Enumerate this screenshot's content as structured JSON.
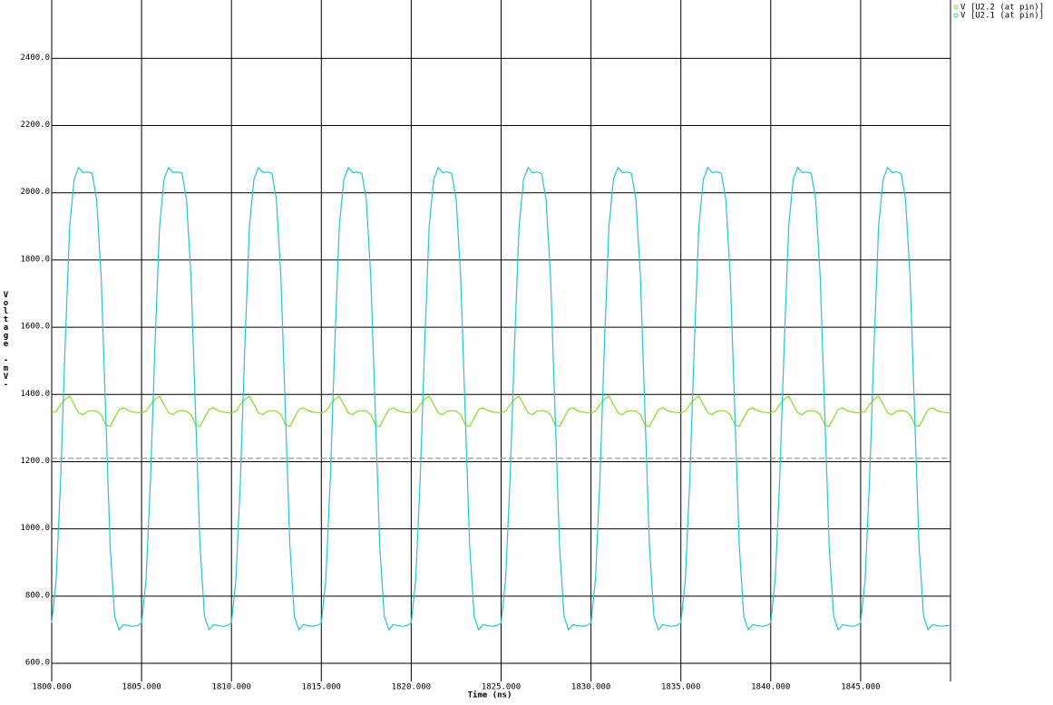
{
  "chart_data": {
    "type": "line",
    "xlabel": "Time (ns)",
    "ylabel": "Voltage -mV-",
    "xlim": [
      1800,
      1850
    ],
    "ylim": [
      600,
      2560
    ],
    "xticks": [
      {
        "value": 1800,
        "label": "1800.000"
      },
      {
        "value": 1805,
        "label": "1805.000"
      },
      {
        "value": 1810,
        "label": "1810.000"
      },
      {
        "value": 1815,
        "label": "1815.000"
      },
      {
        "value": 1820,
        "label": "1820.000"
      },
      {
        "value": 1825,
        "label": "1825.000"
      },
      {
        "value": 1830,
        "label": "1830.000"
      },
      {
        "value": 1835,
        "label": "1835.000"
      },
      {
        "value": 1840,
        "label": "1840.000"
      },
      {
        "value": 1845,
        "label": "1845.000"
      }
    ],
    "yticks": [
      {
        "value": 600,
        "label": "600.0"
      },
      {
        "value": 800,
        "label": "800.0"
      },
      {
        "value": 1000,
        "label": "1000.0"
      },
      {
        "value": 1200,
        "label": "1200.0"
      },
      {
        "value": 1400,
        "label": "1400.0"
      },
      {
        "value": 1600,
        "label": "1600.0"
      },
      {
        "value": 1800,
        "label": "1800.0"
      },
      {
        "value": 2000,
        "label": "2000.0"
      },
      {
        "value": 2200,
        "label": "2200.0"
      },
      {
        "value": 2400,
        "label": "2400.0"
      }
    ],
    "grid": true,
    "legend": "top-right",
    "reference_line": 1210,
    "x": [
      1800,
      1800.25,
      1800.5,
      1800.75,
      1801,
      1801.25,
      1801.5,
      1801.75,
      1802,
      1802.25,
      1802.5,
      1802.75,
      1803,
      1803.25,
      1803.5,
      1803.75,
      1804,
      1804.25,
      1804.5,
      1804.75,
      1805,
      1805.25,
      1805.5,
      1805.75,
      1806,
      1806.25,
      1806.5,
      1806.75,
      1807,
      1807.25,
      1807.5,
      1807.75,
      1808,
      1808.25,
      1808.5,
      1808.75,
      1809,
      1809.25,
      1809.5,
      1809.75,
      1810,
      1810.25,
      1810.5,
      1810.75,
      1811,
      1811.25,
      1811.5,
      1811.75,
      1812,
      1812.25,
      1812.5,
      1812.75,
      1813,
      1813.25,
      1813.5,
      1813.75,
      1814,
      1814.25,
      1814.5,
      1814.75,
      1815,
      1815.25,
      1815.5,
      1815.75,
      1816,
      1816.25,
      1816.5,
      1816.75,
      1817,
      1817.25,
      1817.5,
      1817.75,
      1818,
      1818.25,
      1818.5,
      1818.75,
      1819,
      1819.25,
      1819.5,
      1819.75,
      1820,
      1820.25,
      1820.5,
      1820.75,
      1821,
      1821.25,
      1821.5,
      1821.75,
      1822,
      1822.25,
      1822.5,
      1822.75,
      1823,
      1823.25,
      1823.5,
      1823.75,
      1824,
      1824.25,
      1824.5,
      1824.75,
      1825,
      1825.25,
      1825.5,
      1825.75,
      1826,
      1826.25,
      1826.5,
      1826.75,
      1827,
      1827.25,
      1827.5,
      1827.75,
      1828,
      1828.25,
      1828.5,
      1828.75,
      1829,
      1829.25,
      1829.5,
      1829.75,
      1830,
      1830.25,
      1830.5,
      1830.75,
      1831,
      1831.25,
      1831.5,
      1831.75,
      1832,
      1832.25,
      1832.5,
      1832.75,
      1833,
      1833.25,
      1833.5,
      1833.75,
      1834,
      1834.25,
      1834.5,
      1834.75,
      1835,
      1835.25,
      1835.5,
      1835.75,
      1836,
      1836.25,
      1836.5,
      1836.75,
      1837,
      1837.25,
      1837.5,
      1837.75,
      1838,
      1838.25,
      1838.5,
      1838.75,
      1839,
      1839.25,
      1839.5,
      1839.75,
      1840,
      1840.25,
      1840.5,
      1840.75,
      1841,
      1841.25,
      1841.5,
      1841.75,
      1842,
      1842.25,
      1842.5,
      1842.75,
      1843,
      1843.25,
      1843.5,
      1843.75,
      1844,
      1844.25,
      1844.5,
      1844.75,
      1845,
      1845.25,
      1845.5,
      1845.75,
      1846,
      1846.25,
      1846.5,
      1846.75,
      1847,
      1847.25,
      1847.5,
      1847.75,
      1848,
      1848.25,
      1848.5,
      1848.75,
      1849,
      1849.25,
      1849.5,
      1849.75,
      1850
    ],
    "series": [
      {
        "name": "V [U2.2 (at pin)]",
        "color": "#7ee020",
        "values": [
          1345,
          1350,
          1370,
          1385,
          1395,
          1370,
          1345,
          1340,
          1350,
          1352,
          1350,
          1340,
          1310,
          1305,
          1330,
          1355,
          1360,
          1352,
          1348,
          1346,
          1345,
          1350,
          1370,
          1385,
          1395,
          1370,
          1345,
          1340,
          1350,
          1352,
          1350,
          1340,
          1310,
          1305,
          1330,
          1355,
          1360,
          1352,
          1348,
          1346,
          1345,
          1350,
          1370,
          1385,
          1395,
          1370,
          1345,
          1340,
          1350,
          1352,
          1350,
          1340,
          1310,
          1305,
          1330,
          1355,
          1360,
          1352,
          1348,
          1346,
          1345,
          1350,
          1370,
          1385,
          1395,
          1370,
          1345,
          1340,
          1350,
          1352,
          1350,
          1340,
          1310,
          1305,
          1330,
          1355,
          1360,
          1352,
          1348,
          1346,
          1345,
          1350,
          1370,
          1385,
          1395,
          1370,
          1345,
          1340,
          1350,
          1352,
          1350,
          1340,
          1310,
          1305,
          1330,
          1355,
          1360,
          1352,
          1348,
          1346,
          1345,
          1350,
          1370,
          1385,
          1395,
          1370,
          1345,
          1340,
          1350,
          1352,
          1350,
          1340,
          1310,
          1305,
          1330,
          1355,
          1360,
          1352,
          1348,
          1346,
          1345,
          1350,
          1370,
          1385,
          1395,
          1370,
          1345,
          1340,
          1350,
          1352,
          1350,
          1340,
          1310,
          1305,
          1330,
          1355,
          1360,
          1352,
          1348,
          1346,
          1345,
          1350,
          1370,
          1385,
          1395,
          1370,
          1345,
          1340,
          1350,
          1352,
          1350,
          1340,
          1310,
          1305,
          1330,
          1355,
          1360,
          1352,
          1348,
          1346,
          1345,
          1350,
          1370,
          1385,
          1395,
          1370,
          1345,
          1340,
          1350,
          1352,
          1350,
          1340,
          1310,
          1305,
          1330,
          1355,
          1360,
          1352,
          1348,
          1346,
          1345,
          1350,
          1370,
          1385,
          1395,
          1370,
          1345,
          1340,
          1350,
          1352,
          1350,
          1340,
          1310,
          1305,
          1330,
          1355,
          1360,
          1352,
          1348,
          1346,
          1345
        ]
      },
      {
        "name": "V [U2.1 (at pin)]",
        "color": "#20c8d0",
        "values": [
          720,
          850,
          1150,
          1550,
          1900,
          2040,
          2075,
          2060,
          2062,
          2058,
          1980,
          1750,
          1350,
          950,
          740,
          700,
          715,
          712,
          710,
          712,
          720,
          850,
          1150,
          1550,
          1900,
          2040,
          2075,
          2060,
          2062,
          2058,
          1980,
          1750,
          1350,
          950,
          740,
          700,
          715,
          712,
          710,
          712,
          720,
          850,
          1150,
          1550,
          1900,
          2040,
          2075,
          2060,
          2062,
          2058,
          1980,
          1750,
          1350,
          950,
          740,
          700,
          715,
          712,
          710,
          712,
          720,
          850,
          1150,
          1550,
          1900,
          2040,
          2075,
          2060,
          2062,
          2058,
          1980,
          1750,
          1350,
          950,
          740,
          700,
          715,
          712,
          710,
          712,
          720,
          850,
          1150,
          1550,
          1900,
          2040,
          2075,
          2060,
          2062,
          2058,
          1980,
          1750,
          1350,
          950,
          740,
          700,
          715,
          712,
          710,
          712,
          720,
          850,
          1150,
          1550,
          1900,
          2040,
          2075,
          2060,
          2062,
          2058,
          1980,
          1750,
          1350,
          950,
          740,
          700,
          715,
          712,
          710,
          712,
          720,
          850,
          1150,
          1550,
          1900,
          2040,
          2075,
          2060,
          2062,
          2058,
          1980,
          1750,
          1350,
          950,
          740,
          700,
          715,
          712,
          710,
          712,
          720,
          850,
          1150,
          1550,
          1900,
          2040,
          2075,
          2060,
          2062,
          2058,
          1980,
          1750,
          1350,
          950,
          740,
          700,
          715,
          712,
          710,
          712,
          720,
          850,
          1150,
          1550,
          1900,
          2040,
          2075,
          2060,
          2062,
          2058,
          1980,
          1750,
          1350,
          950,
          740,
          700,
          715,
          712,
          710,
          712,
          720,
          850,
          1150,
          1550,
          1900,
          2040,
          2075,
          2060,
          2062,
          2058,
          1980,
          1750,
          1350,
          950,
          740,
          700,
          715,
          712,
          710,
          712,
          712
        ]
      }
    ]
  }
}
